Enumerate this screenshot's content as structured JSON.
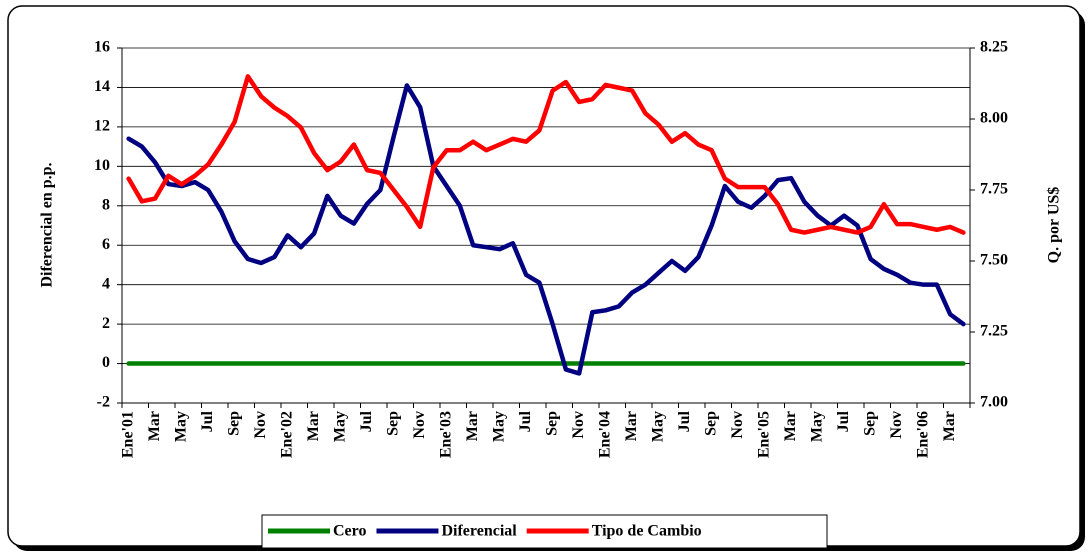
{
  "chart_data": {
    "type": "line",
    "categories": [
      "Ene'01",
      null,
      "Mar",
      null,
      "May",
      null,
      "Jul",
      null,
      "Sep",
      null,
      "Nov",
      null,
      "Ene'02",
      null,
      "Mar",
      null,
      "May",
      null,
      "Jul",
      null,
      "Sep",
      null,
      "Nov",
      null,
      "Ene'03",
      null,
      "Mar",
      null,
      "May",
      null,
      "Jul",
      null,
      "Sep",
      null,
      "Nov",
      null,
      "Ene'04",
      null,
      "Mar",
      null,
      "May",
      null,
      "Jul",
      null,
      "Sep",
      null,
      "Nov",
      null,
      "Ene'05",
      null,
      "Mar",
      null,
      "May",
      null,
      "Jul",
      null,
      "Sep",
      null,
      "Nov",
      null,
      "Ene'06",
      null,
      "Mar",
      null
    ],
    "series": [
      {
        "name": "Cero",
        "color": "#008000",
        "values": [
          0,
          0,
          0,
          0,
          0,
          0,
          0,
          0,
          0,
          0,
          0,
          0,
          0,
          0,
          0,
          0,
          0,
          0,
          0,
          0,
          0,
          0,
          0,
          0,
          0,
          0,
          0,
          0,
          0,
          0,
          0,
          0,
          0,
          0,
          0,
          0,
          0,
          0,
          0,
          0,
          0,
          0,
          0,
          0,
          0,
          0,
          0,
          0,
          0,
          0,
          0,
          0,
          0,
          0,
          0,
          0,
          0,
          0,
          0,
          0,
          0,
          0,
          0,
          0
        ]
      },
      {
        "name": "Diferencial",
        "color": "#000080",
        "values": [
          11.4,
          11.0,
          10.2,
          9.1,
          9.0,
          9.2,
          8.8,
          7.7,
          6.2,
          5.3,
          5.1,
          5.4,
          6.5,
          5.9,
          6.6,
          8.5,
          7.5,
          7.1,
          8.1,
          8.8,
          11.5,
          14.1,
          13.0,
          10.0,
          9.0,
          8.0,
          6.0,
          5.9,
          5.8,
          6.1,
          4.5,
          4.1,
          2.0,
          -0.3,
          -0.5,
          2.6,
          2.7,
          2.9,
          3.6,
          4.0,
          4.6,
          5.2,
          4.7,
          5.4,
          7.0,
          9.0,
          8.2,
          7.9,
          8.5,
          9.3,
          9.4,
          8.2,
          7.5,
          7.0,
          7.5,
          7.0,
          5.3,
          4.8,
          4.5,
          4.1,
          4.0,
          4.0,
          2.5,
          2.0
        ]
      },
      {
        "name": "Tipo de Cambio",
        "color": "#ff0000",
        "axis": "y2",
        "values": [
          7.79,
          7.71,
          7.72,
          7.8,
          7.77,
          7.8,
          7.84,
          7.91,
          7.99,
          8.15,
          8.08,
          8.04,
          8.01,
          7.97,
          7.88,
          7.82,
          7.85,
          7.91,
          7.82,
          7.81,
          7.75,
          7.69,
          7.62,
          7.83,
          7.89,
          7.89,
          7.92,
          7.89,
          7.91,
          7.93,
          7.92,
          7.96,
          8.1,
          8.13,
          8.06,
          8.07,
          8.12,
          8.11,
          8.1,
          8.02,
          7.98,
          7.92,
          7.95,
          7.91,
          7.89,
          7.79,
          7.76,
          7.76,
          7.76,
          7.7,
          7.61,
          7.6,
          7.61,
          7.62,
          7.61,
          7.6,
          7.62,
          7.7,
          7.63,
          7.63,
          7.62,
          7.61,
          7.62,
          7.6
        ]
      }
    ],
    "y_label": "Diferencial en p.p.",
    "y2_label": "Q. por US$",
    "ylim": [
      -2,
      16
    ],
    "yticks": [
      -2,
      0,
      2,
      4,
      6,
      8,
      10,
      12,
      14,
      16
    ],
    "y2lim": [
      7.0,
      8.25
    ],
    "y2ticks": [
      {
        "value": 7.0,
        "label": "7.00"
      },
      7.25,
      {
        "value": 7.5,
        "label": "7.50"
      },
      7.75,
      {
        "value": 8.0,
        "label": "8.00"
      },
      8.25
    ],
    "grid": true,
    "legend": "bottom"
  }
}
